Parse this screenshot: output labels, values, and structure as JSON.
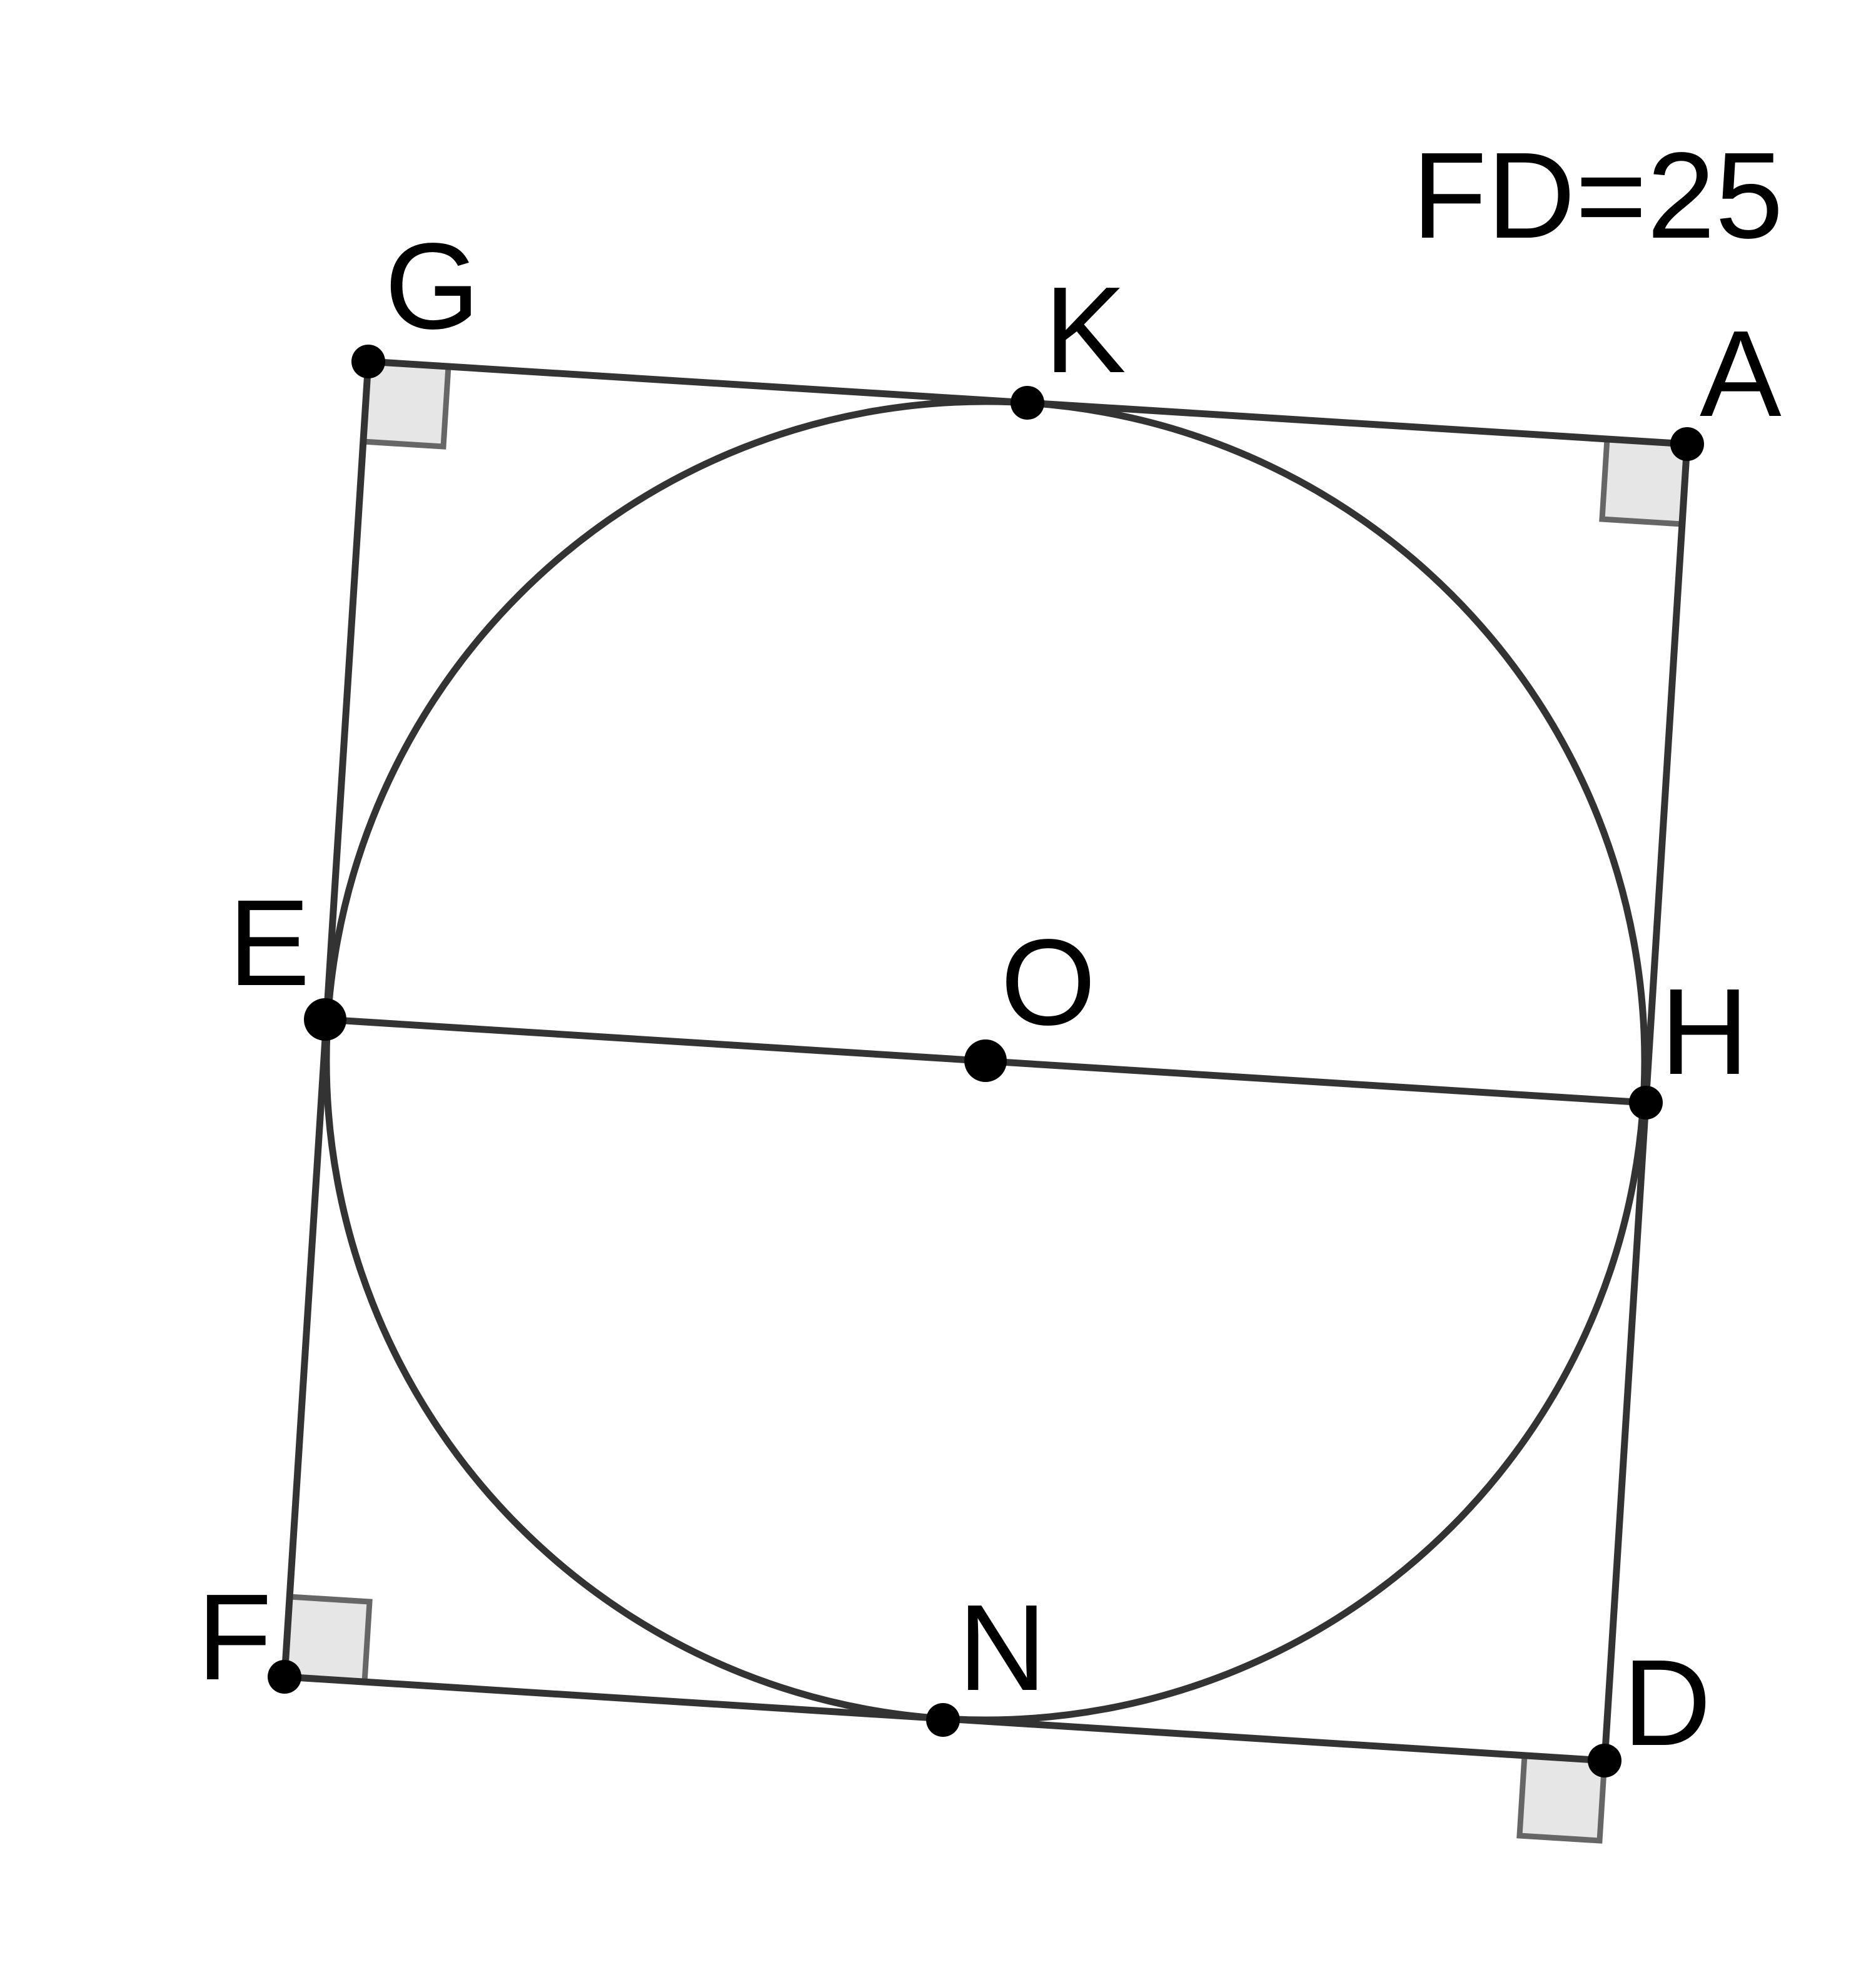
{
  "figure": {
    "given": "FD=25",
    "points": {
      "G": "G",
      "K": "K",
      "A": "A",
      "E": "E",
      "O": "O",
      "H": "H",
      "F": "F",
      "N": "N",
      "D": "D"
    },
    "segments": [
      "GA",
      "AD",
      "DF",
      "FG",
      "EH"
    ],
    "circle": "O",
    "right_angles": [
      "G",
      "A",
      "D",
      "F"
    ],
    "colors": {
      "stroke": "#333333",
      "point": "#000000",
      "right_angle_fill": "#e6e6e6",
      "right_angle_stroke": "#666666"
    }
  }
}
